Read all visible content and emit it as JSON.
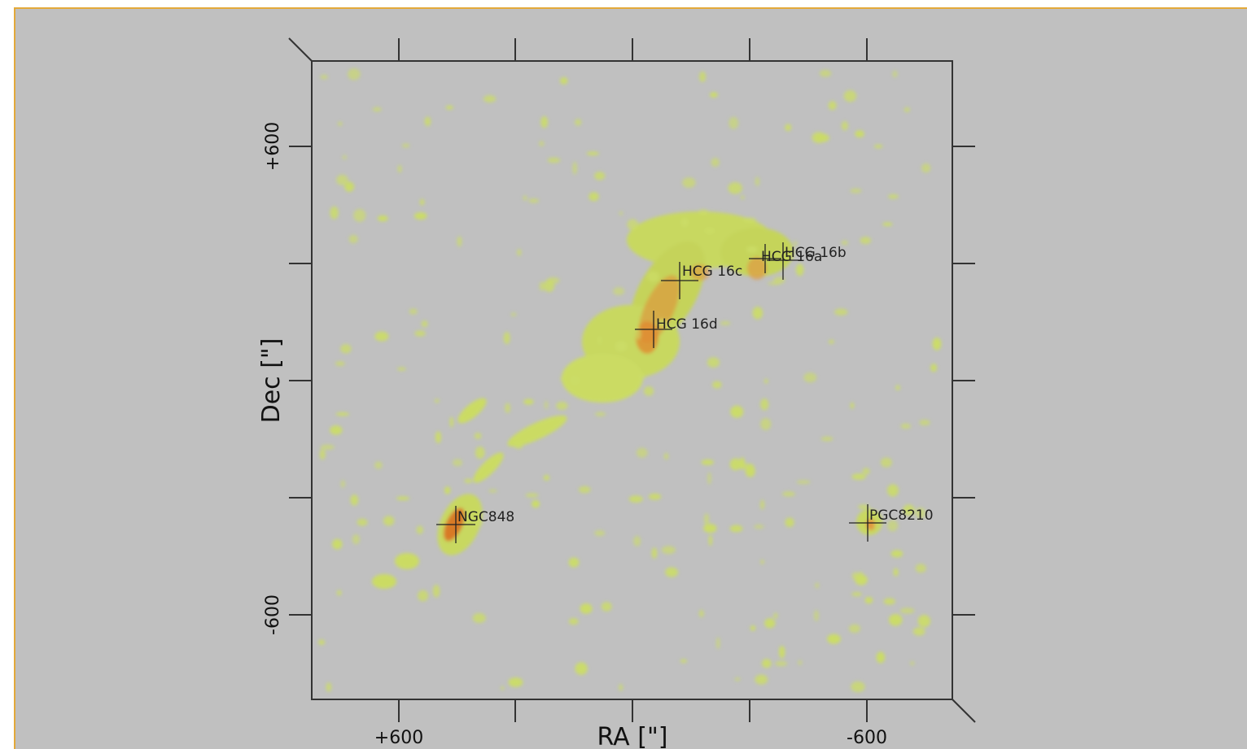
{
  "axes": {
    "x_label": "RA [\"]",
    "y_label": "Dec [\"]",
    "x_ticks": [
      "+600",
      "-600"
    ],
    "y_ticks": [
      "+600",
      "-600"
    ]
  },
  "galaxies": [
    {
      "label": "HCG 16a"
    },
    {
      "label": "HCG 16b"
    },
    {
      "label": "HCG 16c"
    },
    {
      "label": "HCG 16d"
    },
    {
      "label": "NGC848"
    },
    {
      "label": "PGC8210"
    }
  ]
}
